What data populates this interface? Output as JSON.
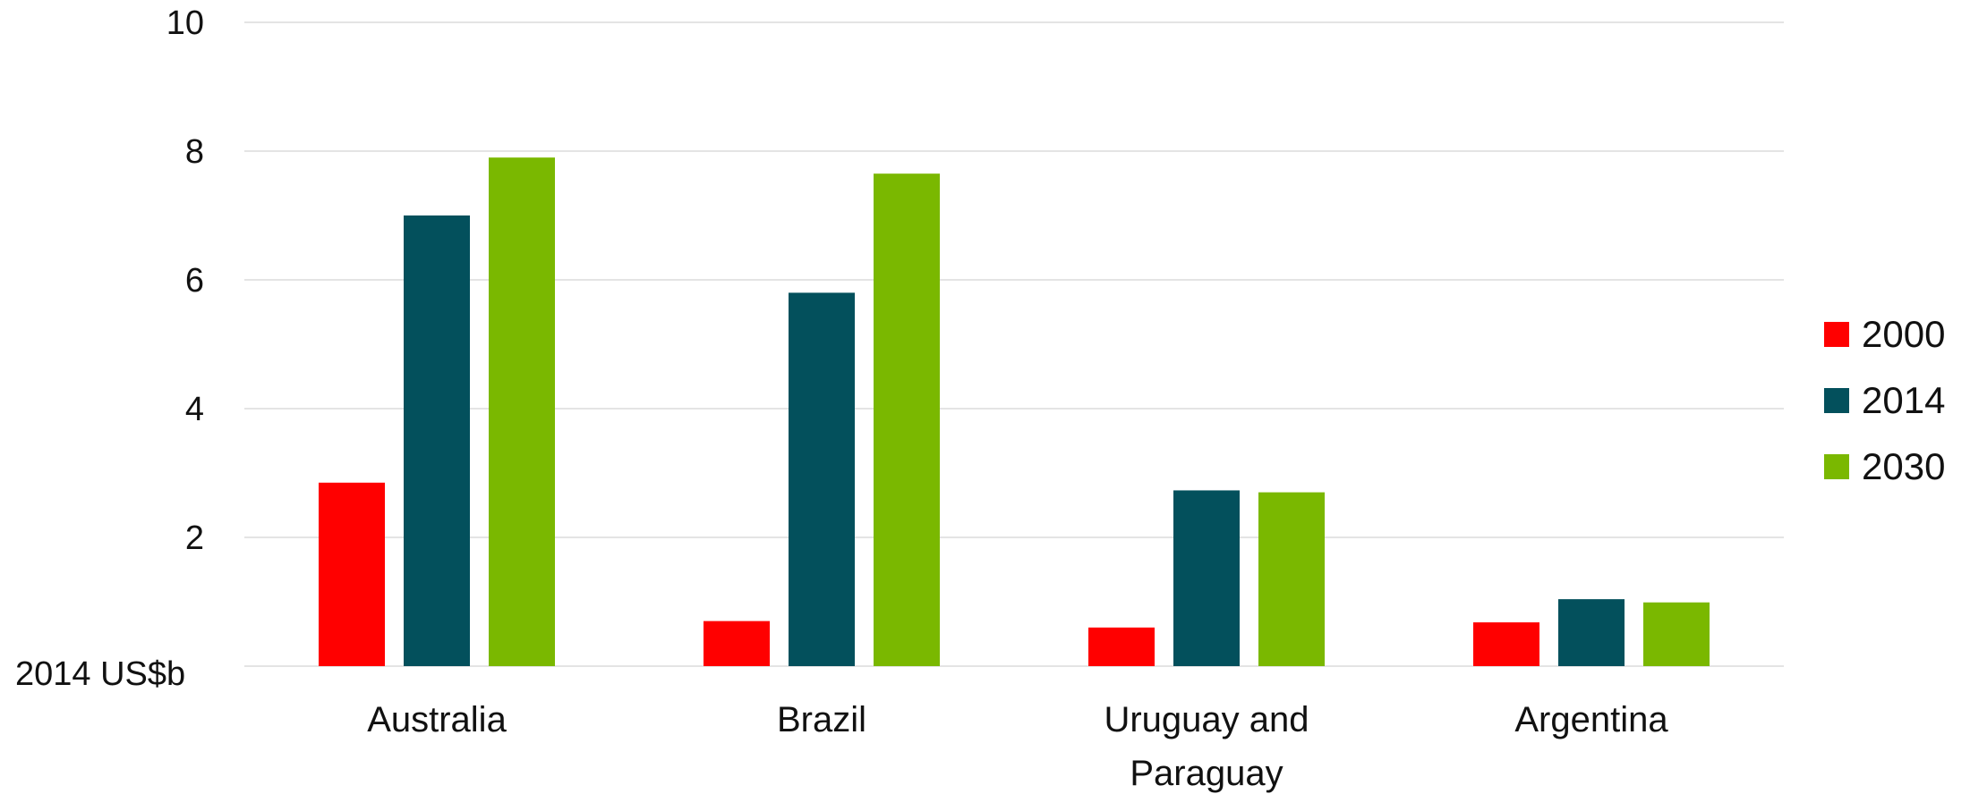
{
  "chart_data": {
    "type": "bar",
    "title": "",
    "xlabel": "",
    "ylabel": "",
    "unit_label": "2014 US$b",
    "ylim": [
      0,
      10
    ],
    "yticks": [
      "2",
      "4",
      "6",
      "8",
      "10"
    ],
    "grid": true,
    "legend_position": "right",
    "categories": [
      "Australia",
      "Brazil",
      "Uruguay and Paraguay",
      "Argentina"
    ],
    "category_lines": [
      [
        "Australia"
      ],
      [
        "Brazil"
      ],
      [
        "Uruguay and",
        "Paraguay"
      ],
      [
        "Argentina"
      ]
    ],
    "series": [
      {
        "name": "2000",
        "color": "#ff0000",
        "values": [
          2.85,
          0.7,
          0.6,
          0.68
        ]
      },
      {
        "name": "2014",
        "color": "#03505c",
        "values": [
          7.0,
          5.8,
          2.73,
          1.04
        ]
      },
      {
        "name": "2030",
        "color": "#7ab800",
        "values": [
          7.9,
          7.65,
          2.7,
          0.99
        ]
      }
    ]
  }
}
